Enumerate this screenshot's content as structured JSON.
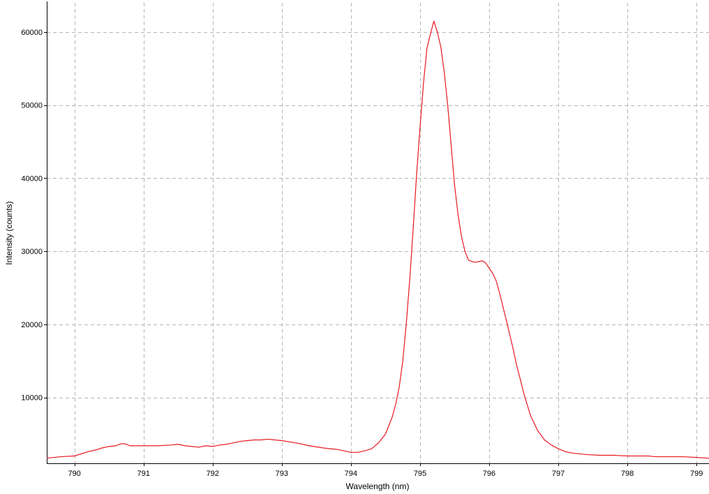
{
  "chart_data": {
    "type": "line",
    "title": "",
    "xlabel": "Wavelength (nm)",
    "ylabel": "Intensity (counts)",
    "xlim": [
      789.6,
      799.18
    ],
    "ylim": [
      1000,
      64000
    ],
    "x_ticks": [
      790,
      791,
      792,
      793,
      794,
      795,
      796,
      797,
      798,
      799
    ],
    "y_ticks": [
      10000,
      20000,
      30000,
      40000,
      50000,
      60000
    ],
    "grid": true,
    "legend": "none",
    "series": [
      {
        "color": "#e8191f",
        "x": [
          789.6,
          789.8,
          790.0,
          790.1,
          790.2,
          790.3,
          790.4,
          790.5,
          790.6,
          790.65,
          790.7,
          790.75,
          790.8,
          791.0,
          791.2,
          791.4,
          791.5,
          791.6,
          791.8,
          791.9,
          792.0,
          792.1,
          792.2,
          792.3,
          792.4,
          792.5,
          792.6,
          792.7,
          792.8,
          792.9,
          793.0,
          793.2,
          793.4,
          793.6,
          793.8,
          794.0,
          794.1,
          794.2,
          794.3,
          794.4,
          794.5,
          794.6,
          794.65,
          794.7,
          794.75,
          794.8,
          794.85,
          794.9,
          794.95,
          795.0,
          795.05,
          795.1,
          795.15,
          795.2,
          795.25,
          795.3,
          795.35,
          795.4,
          795.45,
          795.5,
          795.55,
          795.6,
          795.65,
          795.7,
          795.75,
          795.8,
          795.85,
          795.9,
          795.95,
          796.0,
          796.05,
          796.1,
          796.15,
          796.2,
          796.25,
          796.3,
          796.35,
          796.4,
          796.45,
          796.5,
          796.55,
          796.6,
          796.7,
          796.8,
          796.9,
          797.0,
          797.1,
          797.2,
          797.4,
          797.6,
          797.8,
          798.0,
          798.2,
          798.3,
          798.4,
          798.6,
          798.8,
          799.0,
          799.18
        ],
        "y": [
          1700,
          1900,
          2000,
          2300,
          2600,
          2800,
          3100,
          3300,
          3400,
          3600,
          3700,
          3600,
          3400,
          3400,
          3400,
          3500,
          3600,
          3400,
          3200,
          3400,
          3300,
          3500,
          3600,
          3800,
          4000,
          4100,
          4200,
          4200,
          4300,
          4200,
          4100,
          3800,
          3400,
          3100,
          2900,
          2500,
          2500,
          2700,
          3000,
          3800,
          5000,
          7400,
          9200,
          11500,
          15000,
          20000,
          26000,
          33000,
          40500,
          47000,
          53000,
          57800,
          59700,
          61500,
          60000,
          58000,
          54500,
          50000,
          44500,
          39000,
          35000,
          32000,
          30000,
          28800,
          28600,
          28500,
          28600,
          28700,
          28400,
          27700,
          27000,
          26000,
          24300,
          22400,
          20500,
          18500,
          16500,
          14300,
          12500,
          10600,
          9000,
          7500,
          5500,
          4200,
          3500,
          3000,
          2600,
          2400,
          2200,
          2100,
          2100,
          2000,
          2000,
          2000,
          1900,
          1900,
          1900,
          1800,
          1700
        ]
      }
    ]
  }
}
